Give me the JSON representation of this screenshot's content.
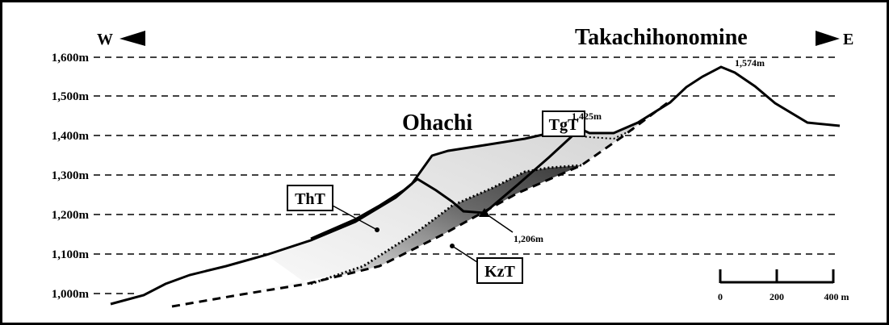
{
  "direction_west": "W",
  "direction_east": "E",
  "peak_name": "Takachihonomine",
  "crater_name": "Ohachi",
  "elevation_labels": [
    "1,600m",
    "1,500m",
    "1,400m",
    "1,300m",
    "1,200m",
    "1,100m",
    "1,000m"
  ],
  "point_labels": [
    "1,574m",
    "1,425m",
    "1,206m"
  ],
  "units": [
    "TgT",
    "ThT",
    "KzT"
  ],
  "scale_bar": {
    "ticks": [
      "0",
      "200",
      "400 m"
    ]
  }
}
